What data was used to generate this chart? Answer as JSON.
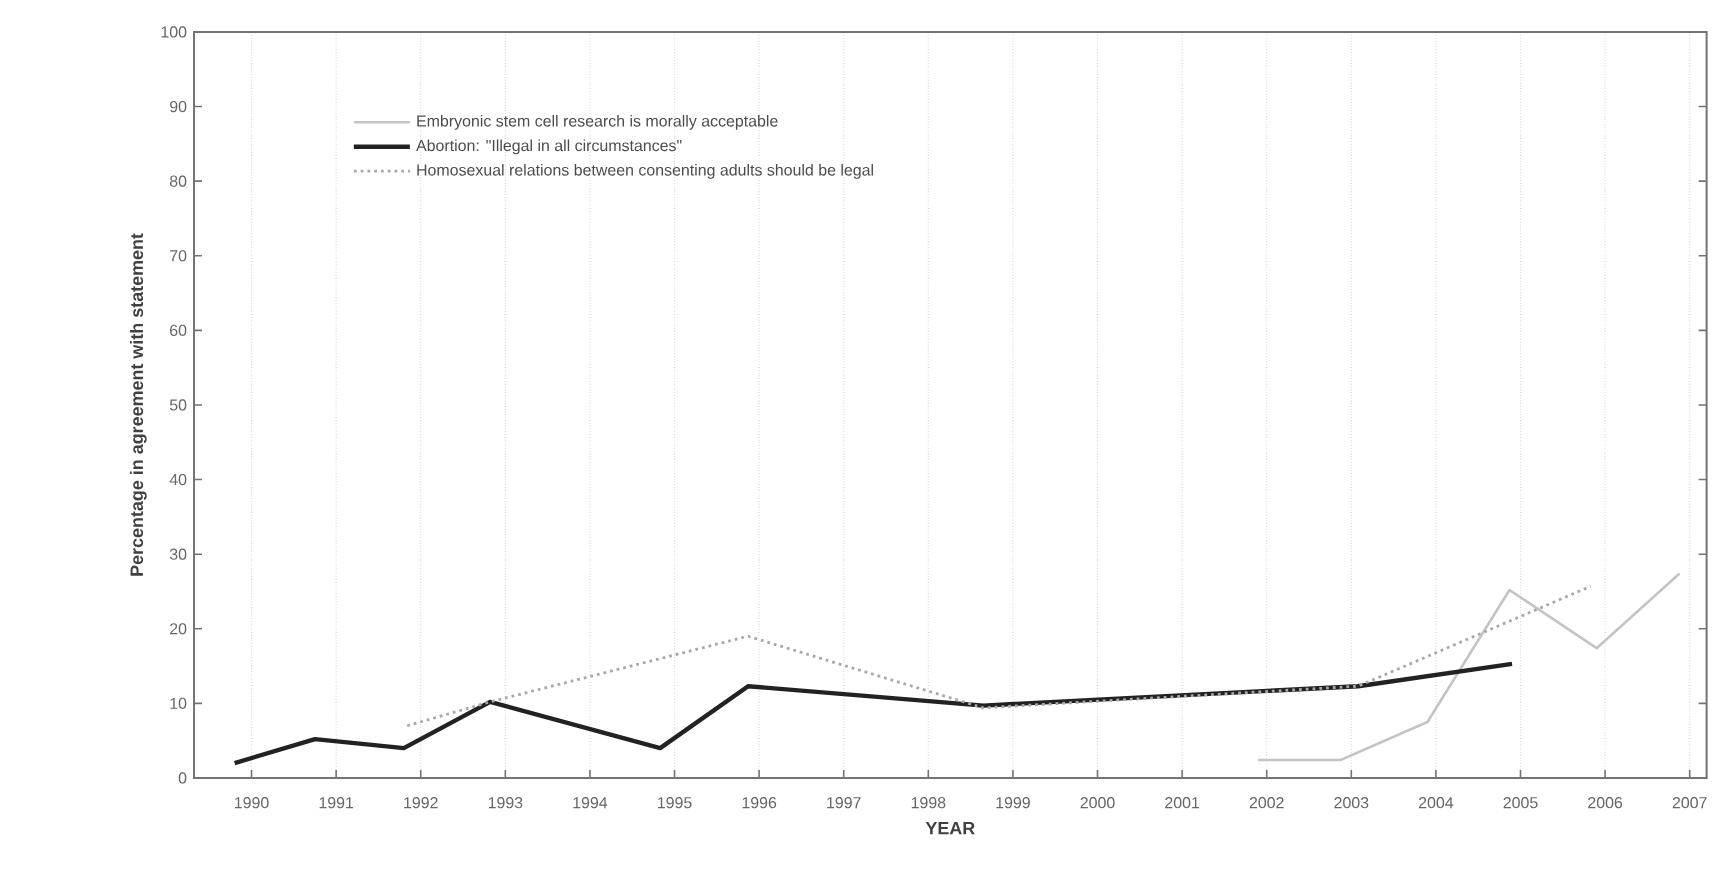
{
  "chart_data": {
    "type": "line",
    "xlabel": "YEAR",
    "ylabel": "Percentage in agreement with statement",
    "xlim": [
      1989.32,
      2007.2
    ],
    "ylim": [
      0,
      100
    ],
    "xticks": [
      1990,
      1991,
      1992,
      1993,
      1994,
      1995,
      1996,
      1997,
      1998,
      1999,
      2000,
      2001,
      2002,
      2003,
      2004,
      2005,
      2006,
      2007
    ],
    "yticks": [
      0,
      10,
      20,
      30,
      40,
      50,
      60,
      70,
      80,
      90,
      100
    ],
    "grid": "x",
    "legend": "top left",
    "marker": "none",
    "series": [
      {
        "name": "Embryonic stem cell research is morally acceptable",
        "color": "#c4c4c4",
        "line_style": "solid",
        "x": [
          2001.9,
          2002.87,
          2003.9,
          2004.87,
          2005.9,
          2006.88
        ],
        "values": [
          2.4,
          2.4,
          7.5,
          25.2,
          17.4,
          27.4
        ]
      },
      {
        "name": "Abortion: \"Illegal in all circumstances\"",
        "color": "#222222",
        "line_style": "solid",
        "x": [
          1989.8,
          1990.75,
          1991.8,
          1992.82,
          1994.83,
          1995.87,
          1998.65,
          2003.08,
          2004.9
        ],
        "values": [
          2.0,
          5.2,
          4.0,
          10.2,
          4.0,
          12.3,
          9.7,
          12.3,
          15.3
        ]
      },
      {
        "name": "Homosexual relations between consenting adults should be legal",
        "color": "#a8a8a8",
        "line_style": "dotted",
        "x": [
          1991.84,
          1992.82,
          1995.87,
          1998.65,
          2003.08,
          2005.83
        ],
        "values": [
          7.0,
          10.2,
          19.0,
          9.4,
          12.3,
          25.7
        ]
      }
    ]
  }
}
